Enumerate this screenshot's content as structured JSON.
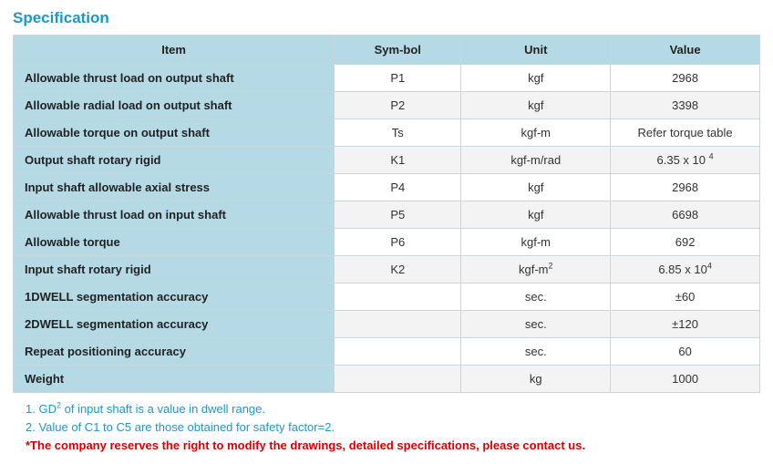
{
  "title": "Specification",
  "columns": [
    "Item",
    "Sym-bol",
    "Unit",
    "Value"
  ],
  "rows": [
    {
      "item": "Allowable thrust load on output shaft",
      "symbol": "P1",
      "unit": "kgf",
      "value": "2968"
    },
    {
      "item": "Allowable radial load on output shaft",
      "symbol": "P2",
      "unit": "kgf",
      "value": "3398"
    },
    {
      "item": "Allowable torque on output shaft",
      "symbol": "Ts",
      "unit": "kgf-m",
      "value": "Refer torque table"
    },
    {
      "item": "Output shaft rotary rigid",
      "symbol": "K1",
      "unit": "kgf-m/rad",
      "value": "6.35 x 10 ",
      "value_sup": "4"
    },
    {
      "item": "Input shaft allowable axial stress",
      "symbol": "P4",
      "unit": "kgf",
      "value": "2968"
    },
    {
      "item": "Allowable thrust load on input shaft",
      "symbol": "P5",
      "unit": "kgf",
      "value": "6698"
    },
    {
      "item": "Allowable torque",
      "symbol": "P6",
      "unit": "kgf-m",
      "value": "692"
    },
    {
      "item": "Input shaft rotary rigid",
      "symbol": "K2",
      "unit": "kgf-m",
      "unit_sup": "2",
      "value": "6.85 x 10",
      "value_sup": "4"
    },
    {
      "item": "1DWELL segmentation accuracy",
      "symbol": "",
      "unit": "sec.",
      "value": "±60"
    },
    {
      "item": "2DWELL segmentation accuracy",
      "symbol": "",
      "unit": "sec.",
      "value": "±120"
    },
    {
      "item": "Repeat positioning accuracy",
      "symbol": "",
      "unit": "sec.",
      "value": "60"
    },
    {
      "item": "Weight",
      "symbol": "",
      "unit": "kg",
      "value": "1000"
    }
  ],
  "notes": {
    "n1_pre": "1. GD",
    "n1_sup": "2",
    "n1_post": " of input shaft is a value in dwell range.",
    "n2": "2. Value of C1 to C5 are those obtained for safety factor=2.",
    "n3": "*The company reserves the right to modify the drawings, detailed specifications, please contact us."
  },
  "colors": {
    "accent": "#2196c4",
    "header_bg": "#b5dae6",
    "border": "#c8d6df",
    "stripe": "#f3f3f3",
    "warn": "#d80000"
  }
}
